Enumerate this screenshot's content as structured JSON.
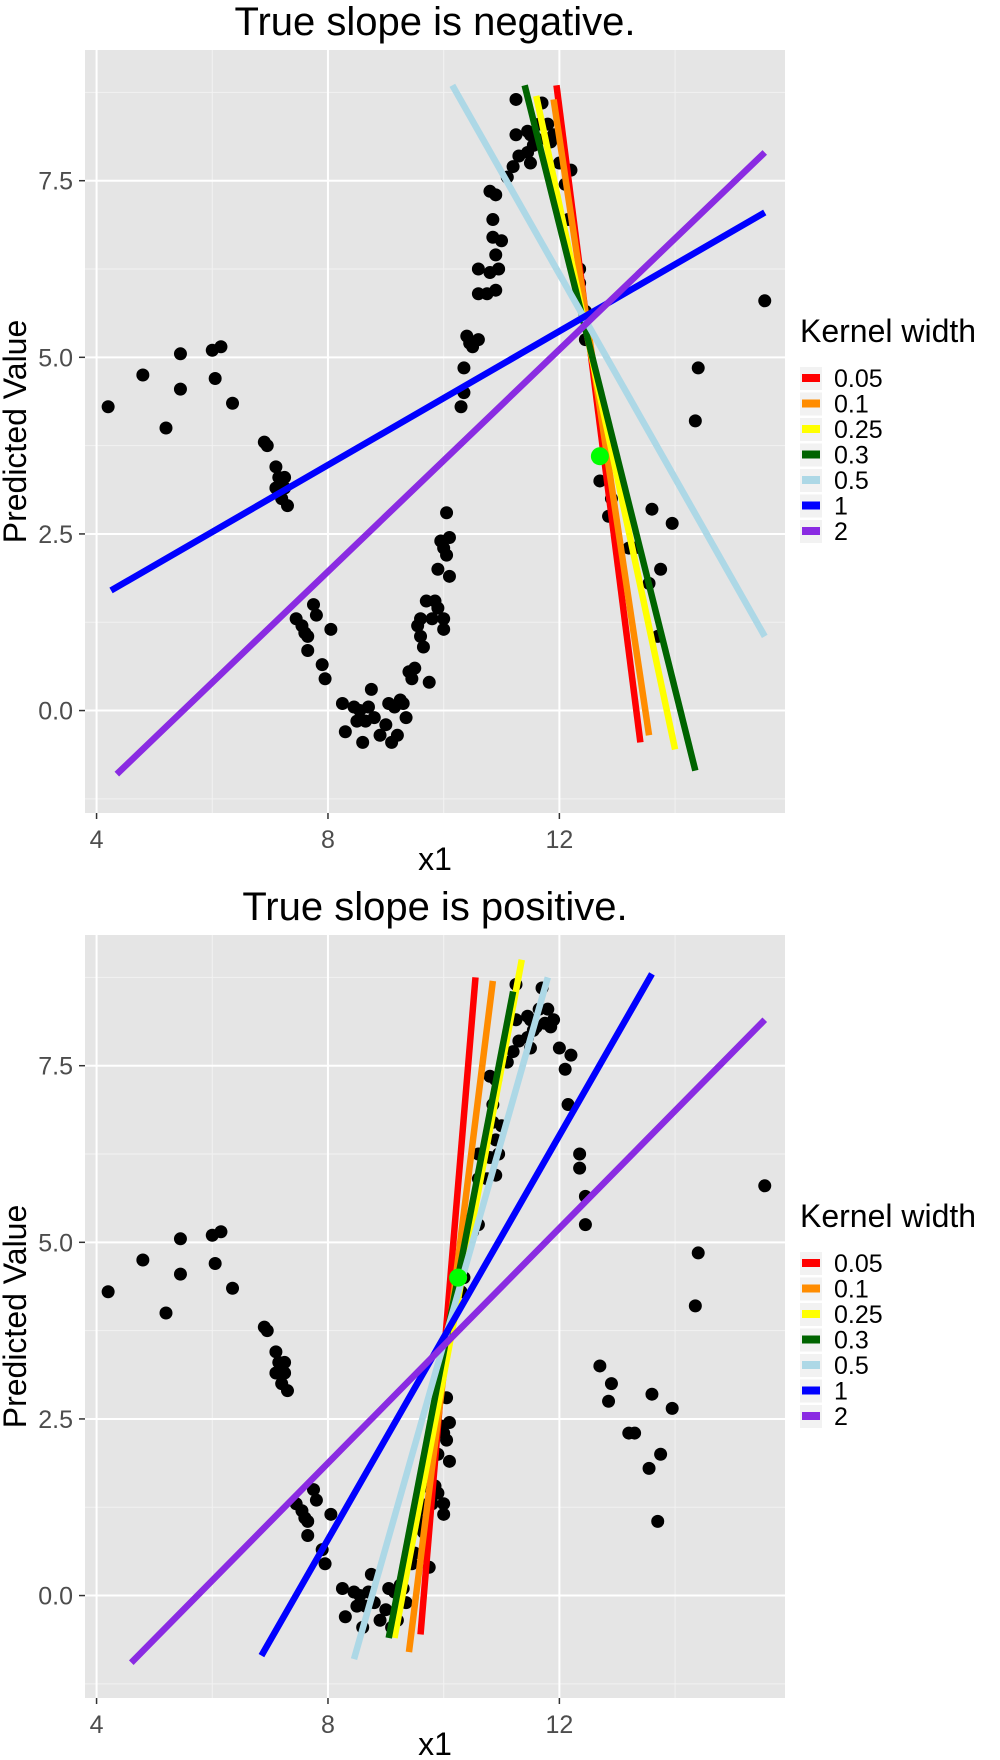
{
  "chart_data": [
    {
      "type": "scatter",
      "title": "True slope is negative.",
      "xlabel": "x1",
      "ylabel": "Predicted Value",
      "xlim": [
        3.8,
        15.9
      ],
      "ylim": [
        -1.45,
        9.35
      ],
      "xticks": [
        4,
        8,
        12
      ],
      "xtick_labels": [
        "4",
        "8",
        "12"
      ],
      "yticks": [
        0.0,
        2.5,
        5.0,
        7.5
      ],
      "ytick_labels": [
        "0.0",
        "2.5",
        "5.0",
        "7.5"
      ],
      "grid": true,
      "legend": {
        "title": "Kernel width",
        "position": "right",
        "entries": [
          {
            "label": "0.05",
            "color": "#FF0000"
          },
          {
            "label": "0.1",
            "color": "#FF8C00"
          },
          {
            "label": "0.25",
            "color": "#FFFF00"
          },
          {
            "label": "0.3",
            "color": "#006400"
          },
          {
            "label": "0.5",
            "color": "#ADD8E6"
          },
          {
            "label": "1",
            "color": "#0000FF"
          },
          {
            "label": "2",
            "color": "#8A2BE2"
          }
        ]
      },
      "lines": [
        {
          "label": "0.05",
          "color": "#FF0000",
          "x": [
            11.95,
            13.4
          ],
          "y": [
            8.85,
            -0.45
          ]
        },
        {
          "label": "0.1",
          "color": "#FF8C00",
          "x": [
            11.9,
            13.55
          ],
          "y": [
            8.65,
            -0.35
          ]
        },
        {
          "label": "0.25",
          "color": "#FFFF00",
          "x": [
            11.6,
            14.0
          ],
          "y": [
            8.7,
            -0.55
          ]
        },
        {
          "label": "0.3",
          "color": "#006400",
          "x": [
            11.4,
            14.35
          ],
          "y": [
            8.85,
            -0.85
          ]
        },
        {
          "label": "0.5",
          "color": "#ADD8E6",
          "x": [
            10.15,
            15.55
          ],
          "y": [
            8.85,
            1.05
          ]
        },
        {
          "label": "1",
          "color": "#0000FF",
          "x": [
            4.25,
            15.55
          ],
          "y": [
            1.7,
            7.05
          ]
        },
        {
          "label": "2",
          "color": "#8A2BE2",
          "x": [
            4.35,
            15.55
          ],
          "y": [
            -0.9,
            7.9
          ]
        }
      ],
      "highlight_point": {
        "x": 12.7,
        "y": 3.6,
        "color": "#00FF00"
      },
      "points": [
        [
          4.2,
          4.3
        ],
        [
          4.8,
          4.75
        ],
        [
          5.2,
          4.0
        ],
        [
          5.45,
          4.55
        ],
        [
          5.45,
          5.05
        ],
        [
          6.0,
          5.1
        ],
        [
          6.15,
          5.15
        ],
        [
          6.05,
          4.7
        ],
        [
          6.35,
          4.35
        ],
        [
          6.9,
          3.8
        ],
        [
          6.95,
          3.75
        ],
        [
          7.1,
          3.45
        ],
        [
          7.15,
          3.3
        ],
        [
          7.1,
          3.15
        ],
        [
          7.25,
          3.3
        ],
        [
          7.2,
          3.0
        ],
        [
          7.3,
          2.9
        ],
        [
          7.25,
          3.15
        ],
        [
          7.45,
          1.3
        ],
        [
          7.55,
          1.2
        ],
        [
          7.65,
          1.05
        ],
        [
          7.6,
          1.1
        ],
        [
          7.65,
          0.85
        ],
        [
          7.75,
          1.5
        ],
        [
          7.8,
          1.35
        ],
        [
          7.9,
          0.65
        ],
        [
          7.95,
          0.45
        ],
        [
          8.05,
          1.15
        ],
        [
          8.25,
          0.1
        ],
        [
          8.3,
          -0.3
        ],
        [
          8.45,
          0.05
        ],
        [
          8.5,
          -0.15
        ],
        [
          8.55,
          0.0
        ],
        [
          8.6,
          -0.45
        ],
        [
          8.65,
          -0.15
        ],
        [
          8.7,
          0.05
        ],
        [
          8.75,
          0.3
        ],
        [
          8.8,
          -0.1
        ],
        [
          8.9,
          -0.35
        ],
        [
          9.0,
          -0.2
        ],
        [
          9.05,
          0.1
        ],
        [
          9.1,
          -0.45
        ],
        [
          9.15,
          0.05
        ],
        [
          9.2,
          -0.35
        ],
        [
          9.25,
          0.15
        ],
        [
          9.3,
          0.1
        ],
        [
          9.35,
          -0.1
        ],
        [
          9.4,
          0.55
        ],
        [
          9.45,
          0.45
        ],
        [
          9.5,
          0.6
        ],
        [
          9.55,
          1.2
        ],
        [
          9.6,
          1.05
        ],
        [
          9.6,
          1.3
        ],
        [
          9.65,
          0.9
        ],
        [
          9.7,
          1.55
        ],
        [
          9.75,
          0.4
        ],
        [
          9.8,
          1.3
        ],
        [
          9.85,
          1.55
        ],
        [
          9.9,
          1.45
        ],
        [
          9.9,
          2.0
        ],
        [
          9.95,
          2.4
        ],
        [
          10.0,
          1.3
        ],
        [
          10.0,
          2.3
        ],
        [
          10.05,
          2.2
        ],
        [
          10.1,
          2.45
        ],
        [
          10.0,
          1.15
        ],
        [
          10.1,
          1.9
        ],
        [
          10.05,
          2.8
        ],
        [
          10.3,
          4.3
        ],
        [
          10.35,
          4.5
        ],
        [
          10.35,
          4.85
        ],
        [
          10.4,
          5.3
        ],
        [
          10.45,
          5.2
        ],
        [
          10.5,
          5.15
        ],
        [
          10.6,
          5.25
        ],
        [
          10.6,
          5.9
        ],
        [
          10.6,
          6.25
        ],
        [
          10.75,
          5.9
        ],
        [
          10.8,
          6.2
        ],
        [
          10.8,
          7.35
        ],
        [
          10.85,
          6.7
        ],
        [
          10.85,
          6.95
        ],
        [
          10.9,
          5.95
        ],
        [
          10.9,
          6.45
        ],
        [
          10.9,
          7.3
        ],
        [
          10.95,
          6.25
        ],
        [
          11.0,
          6.65
        ],
        [
          11.1,
          7.55
        ],
        [
          11.2,
          7.7
        ],
        [
          11.25,
          8.15
        ],
        [
          11.25,
          8.65
        ],
        [
          11.3,
          7.85
        ],
        [
          11.45,
          8.2
        ],
        [
          11.45,
          7.9
        ],
        [
          11.5,
          7.75
        ],
        [
          11.5,
          8.15
        ],
        [
          11.55,
          8.0
        ],
        [
          11.6,
          8.05
        ],
        [
          11.65,
          8.3
        ],
        [
          11.7,
          8.6
        ],
        [
          11.75,
          8.1
        ],
        [
          11.8,
          8.3
        ],
        [
          11.85,
          8.05
        ],
        [
          11.9,
          8.15
        ],
        [
          12.0,
          7.75
        ],
        [
          12.1,
          7.45
        ],
        [
          12.2,
          7.65
        ],
        [
          12.15,
          6.95
        ],
        [
          12.35,
          6.05
        ],
        [
          12.35,
          6.25
        ],
        [
          12.45,
          5.65
        ],
        [
          12.45,
          5.25
        ],
        [
          12.7,
          3.25
        ],
        [
          12.85,
          2.75
        ],
        [
          12.9,
          3.0
        ],
        [
          13.2,
          2.3
        ],
        [
          13.3,
          2.3
        ],
        [
          13.55,
          1.8
        ],
        [
          13.6,
          2.85
        ],
        [
          13.7,
          1.05
        ],
        [
          13.75,
          2.0
        ],
        [
          13.95,
          2.65
        ],
        [
          14.35,
          4.1
        ],
        [
          14.4,
          4.85
        ],
        [
          15.55,
          5.8
        ]
      ]
    },
    {
      "type": "scatter",
      "title": "True slope is positive.",
      "xlabel": "x1",
      "ylabel": "Predicted Value",
      "xlim": [
        3.8,
        15.9
      ],
      "ylim": [
        -1.45,
        9.35
      ],
      "xticks": [
        4,
        8,
        12
      ],
      "xtick_labels": [
        "4",
        "8",
        "12"
      ],
      "yticks": [
        0.0,
        2.5,
        5.0,
        7.5
      ],
      "ytick_labels": [
        "0.0",
        "2.5",
        "5.0",
        "7.5"
      ],
      "grid": true,
      "legend": {
        "title": "Kernel width",
        "position": "right",
        "entries": [
          {
            "label": "0.05",
            "color": "#FF0000"
          },
          {
            "label": "0.1",
            "color": "#FF8C00"
          },
          {
            "label": "0.25",
            "color": "#FFFF00"
          },
          {
            "label": "0.3",
            "color": "#006400"
          },
          {
            "label": "0.5",
            "color": "#ADD8E6"
          },
          {
            "label": "1",
            "color": "#0000FF"
          },
          {
            "label": "2",
            "color": "#8A2BE2"
          }
        ]
      },
      "lines": [
        {
          "label": "0.05",
          "color": "#FF0000",
          "x": [
            9.6,
            10.55
          ],
          "y": [
            -0.55,
            8.75
          ]
        },
        {
          "label": "0.1",
          "color": "#FF8C00",
          "x": [
            9.4,
            10.85
          ],
          "y": [
            -0.8,
            8.7
          ]
        },
        {
          "label": "0.25",
          "color": "#FFFF00",
          "x": [
            9.15,
            11.35
          ],
          "y": [
            -0.6,
            9.0
          ]
        },
        {
          "label": "0.3",
          "color": "#006400",
          "x": [
            9.05,
            11.2
          ],
          "y": [
            -0.6,
            8.55
          ]
        },
        {
          "label": "0.5",
          "color": "#ADD8E6",
          "x": [
            8.45,
            11.8
          ],
          "y": [
            -0.9,
            8.75
          ]
        },
        {
          "label": "1",
          "color": "#0000FF",
          "x": [
            6.85,
            13.6
          ],
          "y": [
            -0.85,
            8.8
          ]
        },
        {
          "label": "2",
          "color": "#8A2BE2",
          "x": [
            4.6,
            15.55
          ],
          "y": [
            -0.95,
            8.15
          ]
        }
      ],
      "highlight_point": {
        "x": 10.25,
        "y": 4.5,
        "color": "#00FF00"
      },
      "points": [
        [
          4.2,
          4.3
        ],
        [
          4.8,
          4.75
        ],
        [
          5.2,
          4.0
        ],
        [
          5.45,
          4.55
        ],
        [
          5.45,
          5.05
        ],
        [
          6.0,
          5.1
        ],
        [
          6.15,
          5.15
        ],
        [
          6.05,
          4.7
        ],
        [
          6.35,
          4.35
        ],
        [
          6.9,
          3.8
        ],
        [
          6.95,
          3.75
        ],
        [
          7.1,
          3.45
        ],
        [
          7.15,
          3.3
        ],
        [
          7.1,
          3.15
        ],
        [
          7.25,
          3.3
        ],
        [
          7.2,
          3.0
        ],
        [
          7.3,
          2.9
        ],
        [
          7.25,
          3.15
        ],
        [
          7.45,
          1.3
        ],
        [
          7.55,
          1.2
        ],
        [
          7.65,
          1.05
        ],
        [
          7.6,
          1.1
        ],
        [
          7.65,
          0.85
        ],
        [
          7.75,
          1.5
        ],
        [
          7.8,
          1.35
        ],
        [
          7.9,
          0.65
        ],
        [
          7.95,
          0.45
        ],
        [
          8.05,
          1.15
        ],
        [
          8.25,
          0.1
        ],
        [
          8.3,
          -0.3
        ],
        [
          8.45,
          0.05
        ],
        [
          8.5,
          -0.15
        ],
        [
          8.55,
          0.0
        ],
        [
          8.6,
          -0.45
        ],
        [
          8.65,
          -0.15
        ],
        [
          8.7,
          0.05
        ],
        [
          8.75,
          0.3
        ],
        [
          8.8,
          -0.1
        ],
        [
          8.9,
          -0.35
        ],
        [
          9.0,
          -0.2
        ],
        [
          9.05,
          0.1
        ],
        [
          9.1,
          -0.45
        ],
        [
          9.15,
          0.05
        ],
        [
          9.2,
          -0.35
        ],
        [
          9.25,
          0.15
        ],
        [
          9.3,
          0.1
        ],
        [
          9.35,
          -0.1
        ],
        [
          9.4,
          0.55
        ],
        [
          9.45,
          0.45
        ],
        [
          9.5,
          0.6
        ],
        [
          9.55,
          1.2
        ],
        [
          9.6,
          1.05
        ],
        [
          9.6,
          1.3
        ],
        [
          9.65,
          0.9
        ],
        [
          9.7,
          1.55
        ],
        [
          9.75,
          0.4
        ],
        [
          9.8,
          1.3
        ],
        [
          9.85,
          1.55
        ],
        [
          9.9,
          1.45
        ],
        [
          9.9,
          2.0
        ],
        [
          9.95,
          2.4
        ],
        [
          10.0,
          1.3
        ],
        [
          10.0,
          2.3
        ],
        [
          10.05,
          2.2
        ],
        [
          10.1,
          2.45
        ],
        [
          10.0,
          1.15
        ],
        [
          10.1,
          1.9
        ],
        [
          10.05,
          2.8
        ],
        [
          10.3,
          4.3
        ],
        [
          10.35,
          4.5
        ],
        [
          10.35,
          4.85
        ],
        [
          10.4,
          5.3
        ],
        [
          10.45,
          5.2
        ],
        [
          10.5,
          5.15
        ],
        [
          10.6,
          5.25
        ],
        [
          10.6,
          5.9
        ],
        [
          10.6,
          6.25
        ],
        [
          10.75,
          5.9
        ],
        [
          10.8,
          6.2
        ],
        [
          10.8,
          7.35
        ],
        [
          10.85,
          6.7
        ],
        [
          10.85,
          6.95
        ],
        [
          10.9,
          5.95
        ],
        [
          10.9,
          6.45
        ],
        [
          10.9,
          7.3
        ],
        [
          10.95,
          6.25
        ],
        [
          11.0,
          6.65
        ],
        [
          11.1,
          7.55
        ],
        [
          11.2,
          7.7
        ],
        [
          11.25,
          8.15
        ],
        [
          11.25,
          8.65
        ],
        [
          11.3,
          7.85
        ],
        [
          11.45,
          8.2
        ],
        [
          11.45,
          7.9
        ],
        [
          11.5,
          7.75
        ],
        [
          11.5,
          8.15
        ],
        [
          11.55,
          8.0
        ],
        [
          11.6,
          8.05
        ],
        [
          11.65,
          8.3
        ],
        [
          11.7,
          8.6
        ],
        [
          11.75,
          8.1
        ],
        [
          11.8,
          8.3
        ],
        [
          11.85,
          8.05
        ],
        [
          11.9,
          8.15
        ],
        [
          12.0,
          7.75
        ],
        [
          12.1,
          7.45
        ],
        [
          12.2,
          7.65
        ],
        [
          12.15,
          6.95
        ],
        [
          12.35,
          6.05
        ],
        [
          12.35,
          6.25
        ],
        [
          12.45,
          5.65
        ],
        [
          12.45,
          5.25
        ],
        [
          12.7,
          3.25
        ],
        [
          12.85,
          2.75
        ],
        [
          12.9,
          3.0
        ],
        [
          13.2,
          2.3
        ],
        [
          13.3,
          2.3
        ],
        [
          13.55,
          1.8
        ],
        [
          13.6,
          2.85
        ],
        [
          13.7,
          1.05
        ],
        [
          13.75,
          2.0
        ],
        [
          13.95,
          2.65
        ],
        [
          14.35,
          4.1
        ],
        [
          14.4,
          4.85
        ],
        [
          15.55,
          5.8
        ]
      ]
    }
  ]
}
